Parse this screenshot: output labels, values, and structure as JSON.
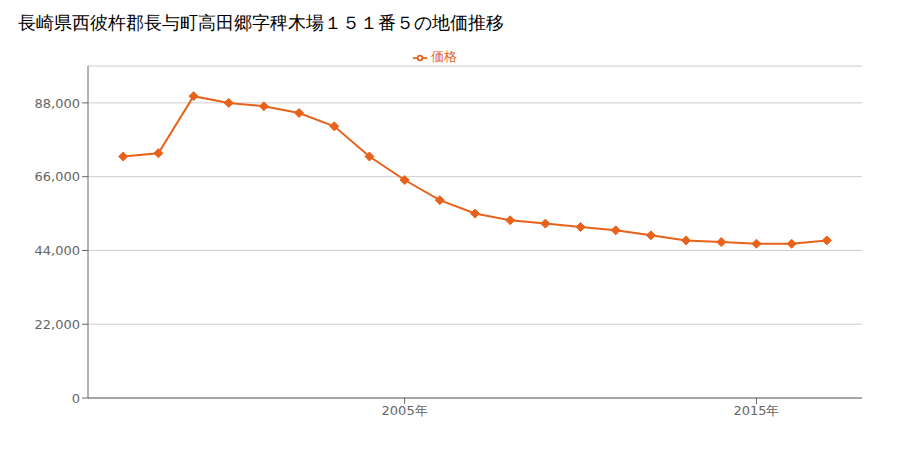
{
  "chart_data": {
    "type": "line",
    "title": "長崎県西彼杵郡長与町高田郷字稗木場１５１番５の地価推移",
    "x": [
      1997,
      1998,
      1999,
      2000,
      2001,
      2002,
      2003,
      2004,
      2005,
      2006,
      2007,
      2008,
      2009,
      2010,
      2011,
      2012,
      2013,
      2014,
      2015,
      2016,
      2017
    ],
    "series": [
      {
        "name": "価格",
        "color": "#e8621a",
        "marker": "diamond",
        "values": [
          72000,
          73000,
          90000,
          88000,
          87000,
          85000,
          81000,
          72000,
          65000,
          59000,
          55000,
          53000,
          52000,
          51000,
          50000,
          48500,
          47000,
          46500,
          46000,
          46000,
          47000
        ]
      }
    ],
    "xlim": [
      1996,
      2018
    ],
    "xticks": [
      {
        "value": 2005,
        "label": "2005年"
      },
      {
        "value": 2015,
        "label": "2015年"
      }
    ],
    "ylim": [
      0,
      99000
    ],
    "yticks": [
      0,
      {
        "value": 22000,
        "label": "22,000"
      },
      {
        "value": 44000,
        "label": "44,000"
      },
      {
        "value": 66000,
        "label": "66,000"
      },
      {
        "value": 88000,
        "label": "88,000"
      }
    ],
    "grid": true,
    "legend": "top"
  }
}
